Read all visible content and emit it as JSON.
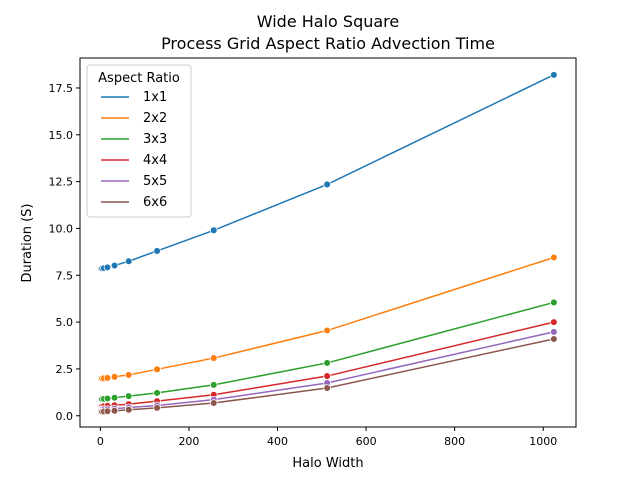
{
  "chart_data": {
    "type": "line",
    "title": "Wide Halo Square",
    "subtitle": "Process Grid Aspect Ratio Advection Time",
    "xlabel": "Halo Width",
    "ylabel": "Duration (S)",
    "xlim": [
      -46,
      1074
    ],
    "ylim": [
      -0.6,
      19.1
    ],
    "x_ticks": [
      0,
      200,
      400,
      600,
      800,
      1000
    ],
    "y_ticks": [
      0.0,
      2.5,
      5.0,
      7.5,
      10.0,
      12.5,
      15.0,
      17.5
    ],
    "y_tick_labels": [
      "0.0",
      "2.5",
      "5.0",
      "7.5",
      "10.0",
      "12.5",
      "15.0",
      "17.5"
    ],
    "grid": false,
    "legend": {
      "title": "Aspect Ratio",
      "placement": "top-left"
    },
    "x": [
      1,
      2,
      4,
      8,
      16,
      32,
      64,
      128,
      256,
      512,
      1024
    ],
    "series": [
      {
        "name": "1x1",
        "color": "#1f77b4",
        "values": [
          7.85,
          7.85,
          7.86,
          7.88,
          7.92,
          8.02,
          8.25,
          8.8,
          9.9,
          12.35,
          18.2
        ]
      },
      {
        "name": "2x2",
        "color": "#ff7f0e",
        "values": [
          1.98,
          1.98,
          1.99,
          2.0,
          2.02,
          2.08,
          2.18,
          2.48,
          3.08,
          4.55,
          8.45
        ]
      },
      {
        "name": "3x3",
        "color": "#2ca02c",
        "values": [
          0.88,
          0.88,
          0.89,
          0.9,
          0.92,
          0.96,
          1.05,
          1.22,
          1.65,
          2.82,
          6.05
        ]
      },
      {
        "name": "4x4",
        "color": "#d62728",
        "values": [
          0.5,
          0.5,
          0.5,
          0.51,
          0.53,
          0.56,
          0.62,
          0.78,
          1.12,
          2.12,
          5.0
        ]
      },
      {
        "name": "5x5",
        "color": "#9467bd",
        "values": [
          0.32,
          0.32,
          0.33,
          0.34,
          0.35,
          0.38,
          0.44,
          0.55,
          0.86,
          1.75,
          4.48
        ]
      },
      {
        "name": "6x6",
        "color": "#8c564b",
        "values": [
          0.22,
          0.22,
          0.22,
          0.23,
          0.24,
          0.27,
          0.32,
          0.42,
          0.68,
          1.48,
          4.1
        ]
      }
    ]
  }
}
